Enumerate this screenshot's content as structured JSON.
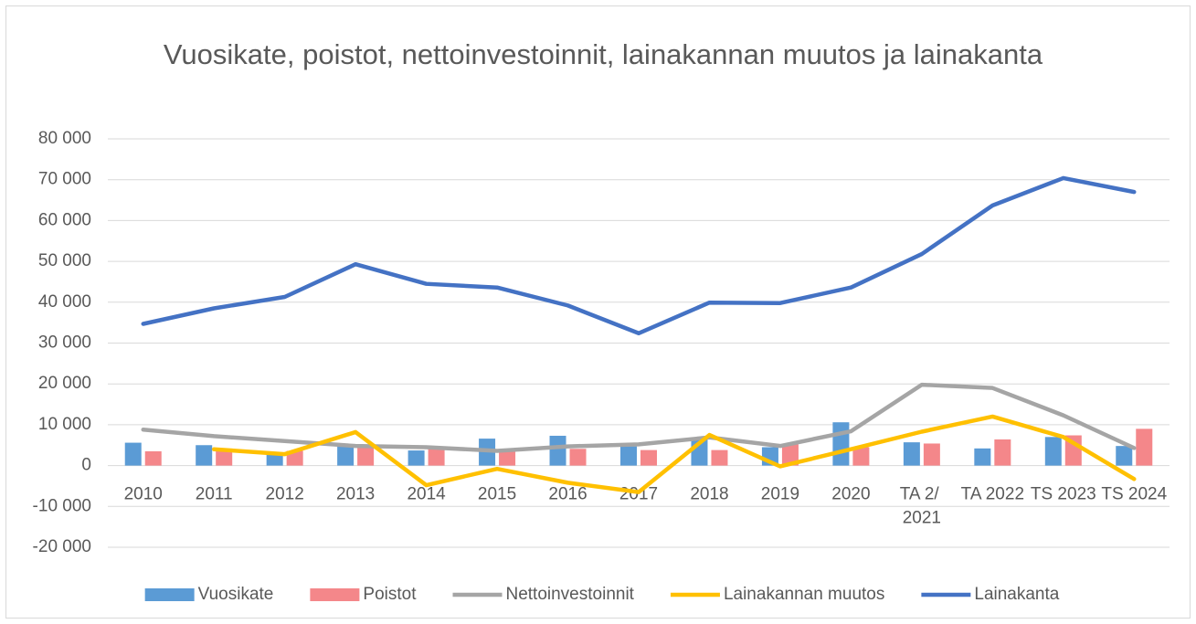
{
  "chart_data": {
    "type": "bar",
    "title": "Vuosikate, poistot, nettoinvestoinnit, lainakannan muutos ja lainakanta",
    "categories": [
      "2010",
      "2011",
      "2012",
      "2013",
      "2014",
      "2015",
      "2016",
      "2017",
      "2018",
      "2019",
      "2020",
      "TA 2/ 2021",
      "TA 2022",
      "TS 2023",
      "TS 2024"
    ],
    "series": [
      {
        "name": "Vuosikate",
        "type": "bar",
        "color": "#5b9bd5",
        "values": [
          5600,
          5000,
          2800,
          4800,
          3700,
          6600,
          7300,
          4700,
          6500,
          4500,
          10600,
          5700,
          4200,
          7000,
          4800
        ]
      },
      {
        "name": "Poistot",
        "type": "bar",
        "color": "#f4878a",
        "values": [
          3500,
          3800,
          3600,
          4500,
          4200,
          3600,
          4100,
          3800,
          3800,
          5200,
          4500,
          5400,
          6400,
          7400,
          9000
        ]
      },
      {
        "name": "Nettoinvestoinnit",
        "type": "line",
        "color": "#a5a5a5",
        "values": [
          8800,
          7200,
          6000,
          4800,
          4500,
          3600,
          4700,
          5200,
          6900,
          4800,
          8400,
          19800,
          19000,
          12300,
          4300
        ]
      },
      {
        "name": "Lainakannan muutos",
        "type": "line",
        "color": "#ffc000",
        "values": [
          null,
          4000,
          2800,
          8200,
          -4800,
          -800,
          -4200,
          -6500,
          7500,
          -200,
          4000,
          8300,
          12000,
          7000,
          -3300
        ]
      },
      {
        "name": "Lainakanta",
        "type": "line",
        "color": "#4472c4",
        "values": [
          34700,
          38500,
          41300,
          49300,
          44500,
          43600,
          39200,
          32400,
          39900,
          39800,
          43600,
          51800,
          63700,
          70400,
          67000
        ]
      }
    ],
    "ylim": [
      -20000,
      80000
    ],
    "yticks": [
      {
        "value": -20000,
        "label": "-20 000"
      },
      {
        "value": -10000,
        "label": "-10 000"
      },
      0,
      {
        "value": 10000,
        "label": "10 000"
      },
      {
        "value": 20000,
        "label": "20 000"
      },
      {
        "value": 30000,
        "label": "30 000"
      },
      {
        "value": 40000,
        "label": "40 000"
      },
      {
        "value": 50000,
        "label": "50 000"
      },
      {
        "value": 60000,
        "label": "60 000"
      },
      {
        "value": 70000,
        "label": "70 000"
      },
      {
        "value": 80000,
        "label": "80 000"
      }
    ],
    "grid": true,
    "legend": "bottom"
  }
}
